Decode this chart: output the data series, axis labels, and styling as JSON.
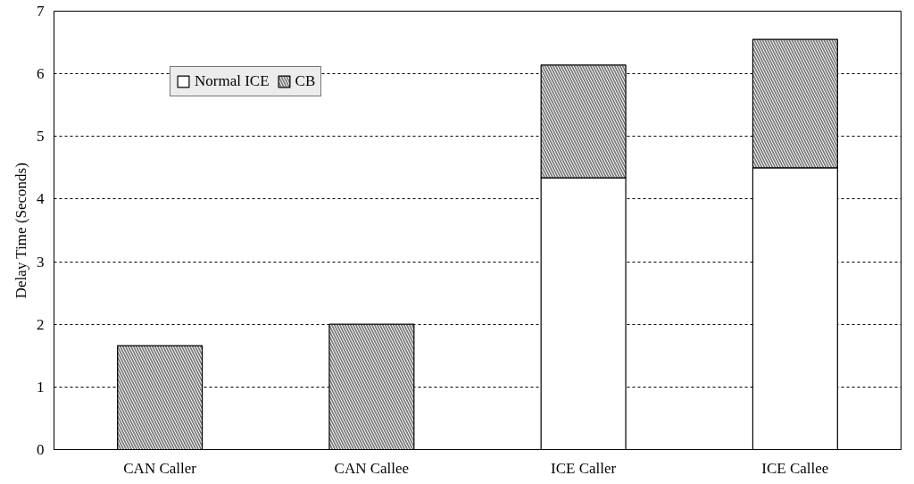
{
  "chart_data": {
    "type": "bar",
    "stacked": true,
    "ylabel": "Delay Time (Seconds)",
    "categories": [
      "CAN Caller",
      "CAN Callee",
      "ICE Caller",
      "ICE Callee"
    ],
    "series": [
      {
        "name": "Normal ICE",
        "color": "#ffffff",
        "values": [
          0,
          0,
          4.34,
          4.5
        ]
      },
      {
        "name": "CB",
        "color": "#7f7f7f",
        "values": [
          1.66,
          2.0,
          1.8,
          2.05
        ]
      }
    ],
    "ylim": [
      0,
      7
    ],
    "yticks": [
      0,
      1,
      2,
      3,
      4,
      5,
      6,
      7
    ],
    "grid": "y",
    "legend": "top left"
  }
}
